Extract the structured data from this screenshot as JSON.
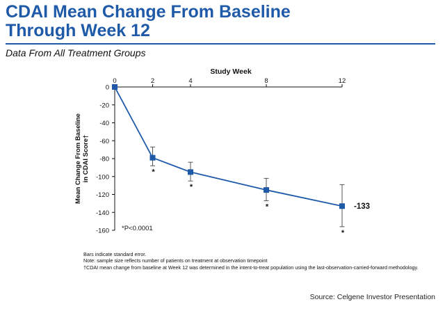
{
  "header": {
    "title_line1": "CDAI Mean Change From Baseline",
    "title_line2": "Through Week 12",
    "subtitle": "Data From All Treatment Groups",
    "accent_color": "#1f5aa8"
  },
  "chart_data": {
    "type": "line",
    "title": "",
    "xlabel": "Study Week",
    "ylabel_line1": "Mean Change From Baseline",
    "ylabel_line2": "in CDAI Score†",
    "xlim": [
      0,
      12
    ],
    "ylim": [
      -160,
      0
    ],
    "x_ticks": [
      0,
      2,
      4,
      8,
      12
    ],
    "y_ticks": [
      0,
      -20,
      -40,
      -60,
      -80,
      -100,
      -120,
      -140,
      -160
    ],
    "series": [
      {
        "x": [
          0,
          2,
          4,
          8,
          12
        ],
        "y": [
          0,
          -79,
          -95,
          -115,
          -133
        ],
        "error_low": [
          0,
          -88,
          -105,
          -127,
          -156
        ],
        "error_high": [
          0,
          -67,
          -84,
          -102,
          -109
        ],
        "significant": [
          false,
          true,
          true,
          true,
          true
        ],
        "color": "#1f5aa8"
      }
    ],
    "end_label": "-133",
    "significance_mark": "*",
    "significance_note": "*P<0.0001"
  },
  "footnotes": [
    "Bars indicate standard error.",
    "Note: sample size reflects number of patients on treatment at observation timepoint",
    "†CDAI mean change from baseline at Week 12 was determined in the intent-to-treat population using the last-observation-carried-forward methodology."
  ],
  "source": "Source: Celgene Investor Presentation"
}
